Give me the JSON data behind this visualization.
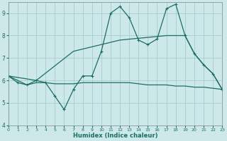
{
  "xlabel": "Humidex (Indice chaleur)",
  "xlim": [
    0,
    23
  ],
  "ylim": [
    4,
    9.5
  ],
  "yticks": [
    4,
    5,
    6,
    7,
    8,
    9
  ],
  "xticks": [
    0,
    1,
    2,
    3,
    4,
    5,
    6,
    7,
    8,
    9,
    10,
    11,
    12,
    13,
    14,
    15,
    16,
    17,
    18,
    19,
    20,
    21,
    22,
    23
  ],
  "bg_color": "#cde8e8",
  "grid_color": "#a0c8c8",
  "line_color": "#1a6e64",
  "line1_x": [
    0,
    1,
    2,
    3,
    4,
    5,
    6,
    7,
    8,
    9,
    10,
    11,
    12,
    13,
    14,
    15,
    16,
    17,
    18,
    19,
    20,
    21,
    22,
    23
  ],
  "line1_y": [
    6.2,
    5.9,
    5.8,
    6.0,
    5.9,
    5.3,
    4.7,
    5.6,
    6.2,
    6.2,
    7.3,
    9.0,
    9.3,
    8.8,
    7.8,
    7.6,
    7.85,
    9.2,
    9.4,
    8.0,
    7.2,
    6.7,
    6.3,
    5.6
  ],
  "line2_x": [
    0,
    3,
    7,
    12,
    17,
    19,
    20,
    21,
    22,
    23
  ],
  "line2_y": [
    6.2,
    6.0,
    7.3,
    7.8,
    8.0,
    8.0,
    7.2,
    6.7,
    6.3,
    5.6
  ],
  "line3_x": [
    0,
    2,
    3,
    4,
    5,
    6,
    7,
    8,
    9,
    10,
    11,
    12,
    13,
    14,
    15,
    16,
    17,
    18,
    19,
    20,
    21,
    22,
    23
  ],
  "line3_y": [
    6.2,
    5.8,
    5.9,
    5.9,
    5.85,
    5.85,
    5.85,
    5.9,
    5.9,
    5.9,
    5.9,
    5.9,
    5.9,
    5.85,
    5.8,
    5.8,
    5.8,
    5.75,
    5.75,
    5.7,
    5.7,
    5.65,
    5.6
  ]
}
